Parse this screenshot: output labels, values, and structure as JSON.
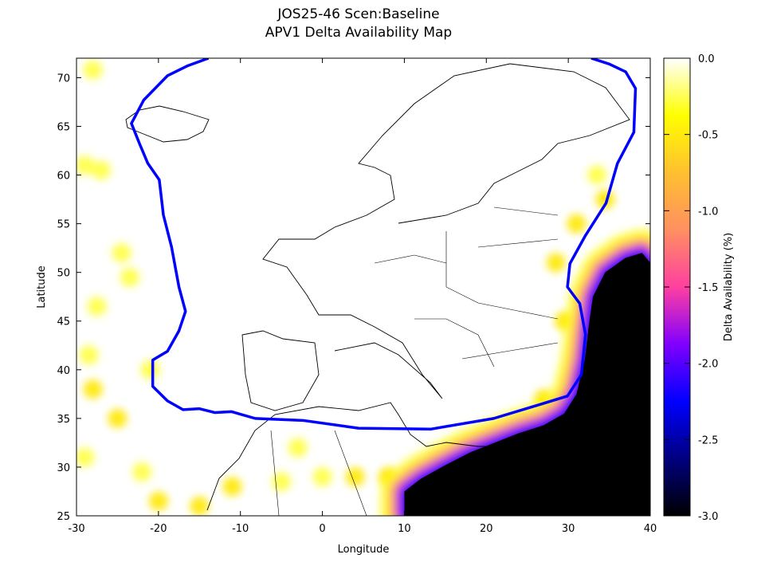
{
  "chart_data": {
    "type": "heatmap",
    "title": "JOS25-46 Scen:Baseline",
    "subtitle": "APV1 Delta Availability Map",
    "xlabel": "Longitude",
    "ylabel": "Latitude",
    "xlim": [
      -30,
      40
    ],
    "ylim": [
      25,
      72
    ],
    "xticks": [
      "-30",
      "-20",
      "-10",
      "0",
      "10",
      "20",
      "30",
      "40"
    ],
    "yticks": [
      "25",
      "30",
      "35",
      "40",
      "45",
      "50",
      "55",
      "60",
      "65",
      "70"
    ],
    "colorbar": {
      "label": "Delta Availability (%)",
      "range": [
        -3.0,
        0.0
      ],
      "ticks": [
        "0.0",
        "-0.5",
        "-1.0",
        "-1.5",
        "-2.0",
        "-2.5",
        "-3.0"
      ],
      "palette": [
        "#000000",
        "#00007f",
        "#0000ff",
        "#8000ff",
        "#ff40a0",
        "#ff9060",
        "#ffc030",
        "#ffff00",
        "#ffffff"
      ]
    },
    "grid": false,
    "coverage_contour_color": "#0000ff",
    "coverage_contour": [
      [
        -13.9,
        72
      ],
      [
        -16.5,
        71.2
      ],
      [
        -18.9,
        70.2
      ],
      [
        -21.8,
        67.7
      ],
      [
        -23.3,
        65.3
      ],
      [
        -22.3,
        63.2
      ],
      [
        -21.3,
        61.2
      ],
      [
        -19.9,
        59.5
      ],
      [
        -19.4,
        55.9
      ],
      [
        -18.4,
        52.6
      ],
      [
        -17.5,
        48.5
      ],
      [
        -16.7,
        46
      ],
      [
        -17.5,
        44
      ],
      [
        -18.9,
        41.9
      ],
      [
        -20.7,
        41
      ],
      [
        -20.7,
        38.3
      ],
      [
        -18.9,
        36.8
      ],
      [
        -17,
        35.9
      ],
      [
        -15,
        36
      ],
      [
        -13.1,
        35.6
      ],
      [
        -11.1,
        35.7
      ],
      [
        -8.2,
        35
      ],
      [
        -2.4,
        34.8
      ],
      [
        4.4,
        34
      ],
      [
        13.2,
        33.9
      ],
      [
        20.9,
        35
      ],
      [
        26.8,
        36.5
      ],
      [
        29.9,
        37.3
      ],
      [
        31.6,
        39.5
      ],
      [
        32.1,
        43.6
      ],
      [
        31.4,
        46.8
      ],
      [
        29.9,
        48.5
      ],
      [
        30.2,
        50.9
      ],
      [
        32.1,
        53.8
      ],
      [
        34.6,
        57.1
      ],
      [
        36,
        61.2
      ],
      [
        38,
        64.4
      ],
      [
        38.2,
        68.9
      ],
      [
        37,
        70.6
      ],
      [
        35,
        71.4
      ],
      [
        32.8,
        72
      ]
    ],
    "degraded_region": {
      "value": -3.0,
      "boundary": [
        [
          10,
          25
        ],
        [
          10,
          27.5
        ],
        [
          12,
          28.8
        ],
        [
          15,
          30.2
        ],
        [
          18,
          31.5
        ],
        [
          21,
          32.5
        ],
        [
          24,
          33.5
        ],
        [
          27,
          34.3
        ],
        [
          29.5,
          35.5
        ],
        [
          31,
          37.5
        ],
        [
          32,
          41
        ],
        [
          32.5,
          44.5
        ],
        [
          33,
          47.5
        ],
        [
          34.5,
          50
        ],
        [
          37,
          51.5
        ],
        [
          39,
          52
        ],
        [
          40,
          51
        ],
        [
          40,
          25
        ]
      ]
    },
    "minor_degradation": [
      {
        "lon": -28,
        "lat": 70.8,
        "value": -0.2
      },
      {
        "lon": -27,
        "lat": 60.5,
        "value": -0.2
      },
      {
        "lon": -29,
        "lat": 61,
        "value": -0.2
      },
      {
        "lon": -24.5,
        "lat": 52,
        "value": -0.2
      },
      {
        "lon": -23.5,
        "lat": 49.5,
        "value": -0.2
      },
      {
        "lon": -27.5,
        "lat": 46.5,
        "value": -0.2
      },
      {
        "lon": -28.5,
        "lat": 41.5,
        "value": -0.2
      },
      {
        "lon": -28,
        "lat": 38,
        "value": -0.3
      },
      {
        "lon": -25,
        "lat": 35,
        "value": -0.3
      },
      {
        "lon": -29,
        "lat": 31,
        "value": -0.2
      },
      {
        "lon": -22,
        "lat": 29.5,
        "value": -0.2
      },
      {
        "lon": -20,
        "lat": 26.5,
        "value": -0.3
      },
      {
        "lon": -15,
        "lat": 26,
        "value": -0.3
      },
      {
        "lon": -11,
        "lat": 28,
        "value": -0.3
      },
      {
        "lon": -5,
        "lat": 28.5,
        "value": -0.2
      },
      {
        "lon": -3,
        "lat": 32,
        "value": -0.2
      },
      {
        "lon": 0,
        "lat": 29,
        "value": -0.2
      },
      {
        "lon": 4,
        "lat": 29,
        "value": -0.3
      },
      {
        "lon": 8,
        "lat": 29,
        "value": -0.3
      },
      {
        "lon": 28.5,
        "lat": 51,
        "value": -0.3
      },
      {
        "lon": 29.5,
        "lat": 45,
        "value": -0.3
      },
      {
        "lon": 27,
        "lat": 37,
        "value": -0.3
      },
      {
        "lon": 34.5,
        "lat": 57.5,
        "value": -0.3
      },
      {
        "lon": 33.5,
        "lat": 60,
        "value": -0.2
      },
      {
        "lon": 31,
        "lat": 55,
        "value": -0.3
      },
      {
        "lon": -21,
        "lat": 40,
        "value": -0.2
      }
    ]
  }
}
